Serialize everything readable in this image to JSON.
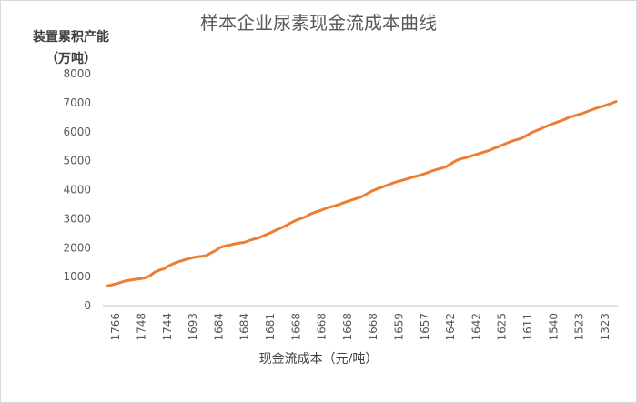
{
  "chart_data": {
    "type": "line",
    "title": "样本企业尿素现金流成本曲线",
    "ylabel_line1": "装置累积产能",
    "ylabel_line2": "（万吨）",
    "xlabel": "现金流成本（元/吨）",
    "ylim": [
      0,
      8000
    ],
    "yticks": [
      0,
      1000,
      2000,
      3000,
      4000,
      5000,
      6000,
      7000,
      8000
    ],
    "grid": false,
    "legend": "none",
    "line_color": "#ED7D31",
    "axis_color": "#bfbfbf",
    "x_tick_labels": [
      "1766",
      "1748",
      "1744",
      "1693",
      "1684",
      "1684",
      "1681",
      "1668",
      "1668",
      "1668",
      "1668",
      "1659",
      "1657",
      "1642",
      "1642",
      "1625",
      "1611",
      "1540",
      "1523",
      "1323"
    ],
    "series": [
      {
        "values": [
          680,
          720,
          760,
          810,
          860,
          880,
          910,
          930,
          960,
          1030,
          1150,
          1220,
          1270,
          1370,
          1450,
          1510,
          1560,
          1610,
          1650,
          1680,
          1700,
          1730,
          1820,
          1900,
          2010,
          2060,
          2090,
          2130,
          2160,
          2180,
          2240,
          2290,
          2330,
          2400,
          2470,
          2540,
          2620,
          2690,
          2770,
          2860,
          2940,
          3000,
          3060,
          3150,
          3220,
          3270,
          3330,
          3390,
          3430,
          3480,
          3540,
          3600,
          3650,
          3700,
          3760,
          3850,
          3940,
          4010,
          4070,
          4130,
          4190,
          4250,
          4300,
          4340,
          4390,
          4440,
          4480,
          4530,
          4590,
          4650,
          4700,
          4740,
          4800,
          4900,
          5000,
          5060,
          5100,
          5150,
          5200,
          5250,
          5300,
          5350,
          5420,
          5480,
          5550,
          5620,
          5680,
          5730,
          5780,
          5870,
          5960,
          6030,
          6100,
          6170,
          6240,
          6300,
          6360,
          6420,
          6490,
          6540,
          6590,
          6640,
          6700,
          6760,
          6820,
          6870,
          6920,
          6980,
          7040
        ]
      }
    ]
  }
}
